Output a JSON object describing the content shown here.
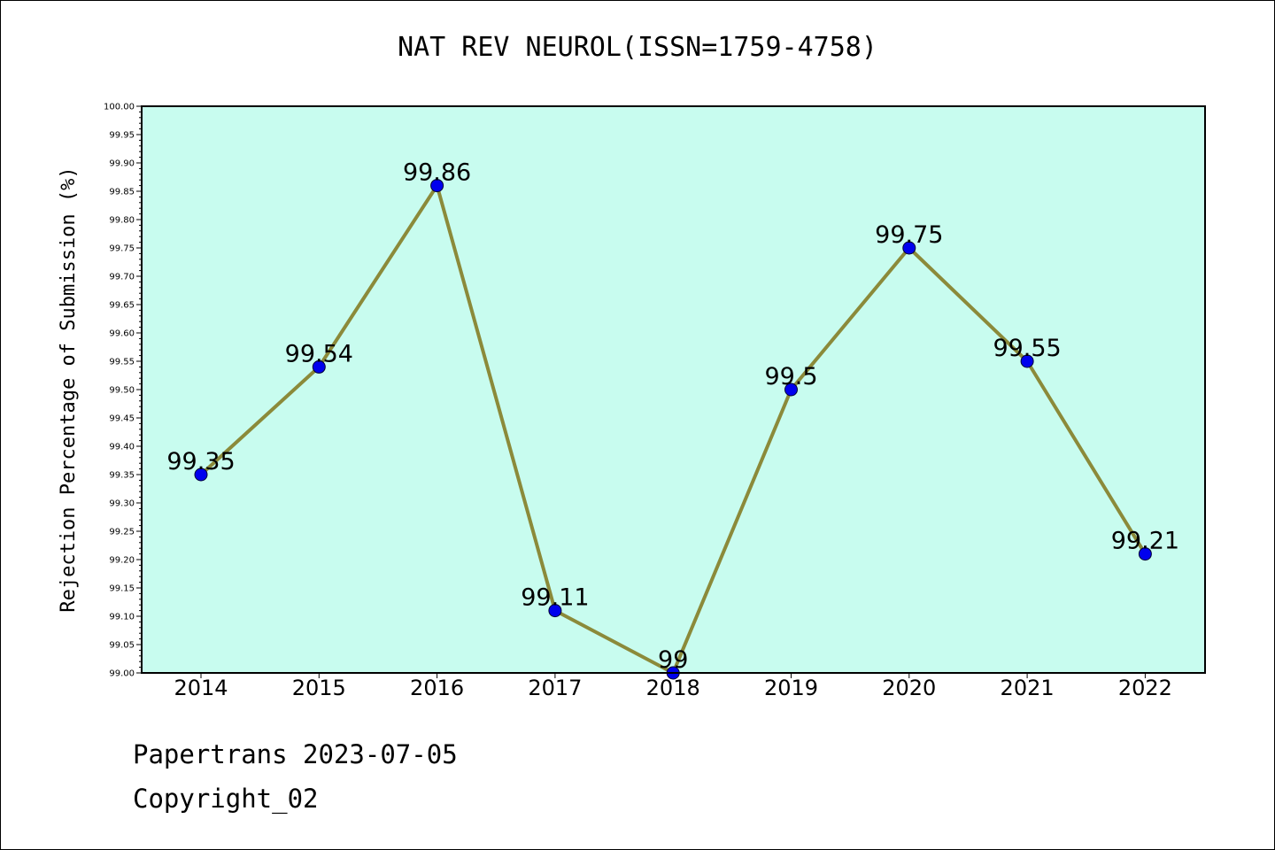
{
  "chart_data": {
    "type": "line",
    "title": "NAT REV NEUROL(ISSN=1759-4758)",
    "xlabel": "",
    "ylabel": "Rejection Percentage of Submission (%)",
    "categories": [
      "2014",
      "2015",
      "2016",
      "2017",
      "2018",
      "2019",
      "2020",
      "2021",
      "2022"
    ],
    "series": [
      {
        "values": [
          99.35,
          99.54,
          99.86,
          99.11,
          99.0,
          99.5,
          99.75,
          99.55,
          99.21
        ],
        "labels": [
          "99.35",
          "99.54",
          "99.86",
          "99.11",
          "99",
          "99.5",
          "99.75",
          "99.55",
          "99.21"
        ]
      }
    ],
    "ylim": [
      99.0,
      100.0
    ],
    "ytick_step": 0.05,
    "grid": false,
    "colors": {
      "plot_background": "#c8fcef",
      "line": "#8b8a3a",
      "marker": "#0000ee"
    }
  },
  "footer": {
    "line1": "Papertrans 2023-07-05",
    "line2": "Copyright_02"
  }
}
